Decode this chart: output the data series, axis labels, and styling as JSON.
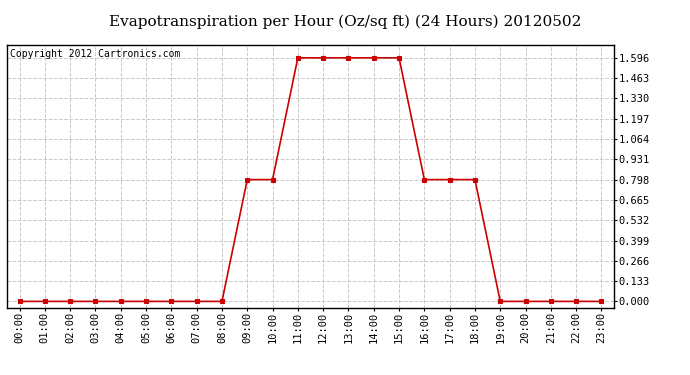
{
  "title": "Evapotranspiration per Hour (Oz/sq ft) (24 Hours) 20120502",
  "copyright": "Copyright 2012 Cartronics.com",
  "hours": [
    0,
    1,
    2,
    3,
    4,
    5,
    6,
    7,
    8,
    9,
    10,
    11,
    12,
    13,
    14,
    15,
    16,
    17,
    18,
    19,
    20,
    21,
    22,
    23
  ],
  "values": [
    0.0,
    0.0,
    0.0,
    0.0,
    0.0,
    0.0,
    0.0,
    0.0,
    0.0,
    0.798,
    0.798,
    1.596,
    1.596,
    1.596,
    1.596,
    1.596,
    0.798,
    0.798,
    0.798,
    0.0,
    0.0,
    0.0,
    0.0,
    0.0
  ],
  "xlabels": [
    "00:00",
    "01:00",
    "02:00",
    "03:00",
    "04:00",
    "05:00",
    "06:00",
    "07:00",
    "08:00",
    "09:00",
    "10:00",
    "11:00",
    "12:00",
    "13:00",
    "14:00",
    "15:00",
    "16:00",
    "17:00",
    "18:00",
    "19:00",
    "20:00",
    "21:00",
    "22:00",
    "23:00"
  ],
  "yticks": [
    0.0,
    0.133,
    0.266,
    0.399,
    0.532,
    0.665,
    0.798,
    0.931,
    1.064,
    1.197,
    1.33,
    1.463,
    1.596
  ],
  "line_color": "#cc0000",
  "marker_color": "#cc0000",
  "bg_color": "#ffffff",
  "plot_bg_color": "#ffffff",
  "grid_color": "#c8c8c8",
  "title_fontsize": 11,
  "copyright_fontsize": 7,
  "tick_fontsize": 7.5,
  "ylim_min": -0.04,
  "ylim_max": 1.68
}
